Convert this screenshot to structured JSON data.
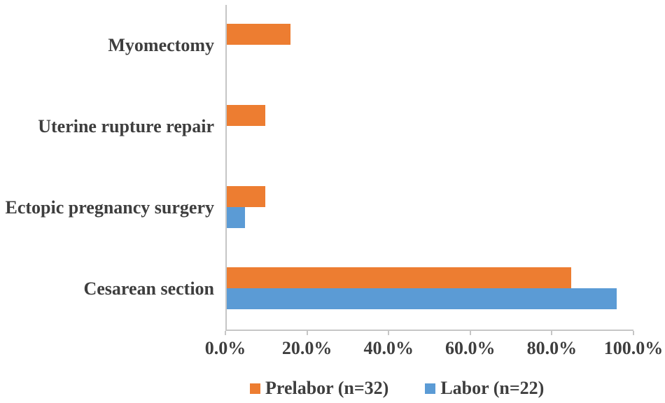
{
  "chart_data": {
    "type": "bar",
    "orientation": "horizontal",
    "title": "",
    "xlabel": "",
    "ylabel": "",
    "categories": [
      "Myomectomy",
      "Uterine rupture repair",
      "Ectopic pregnancy surgery",
      "Cesarean section"
    ],
    "series": [
      {
        "name": "Prelabor (n=32)",
        "color": "#ED7D31",
        "values": [
          15.6,
          9.4,
          9.4,
          84.4
        ]
      },
      {
        "name": "Labor (n=22)",
        "color": "#5B9BD5",
        "values": [
          0,
          0,
          4.5,
          95.5
        ]
      }
    ],
    "xlim": [
      0,
      100
    ],
    "x_tick_labels": [
      "0.0%",
      "20.0%",
      "40.0%",
      "60.0%",
      "80.0%",
      "100.0%"
    ],
    "grid": false,
    "legend_position": "bottom",
    "axis_color": "#C6C6C6",
    "text_color": "#3E3E3E",
    "background": "#FFFFFF"
  }
}
